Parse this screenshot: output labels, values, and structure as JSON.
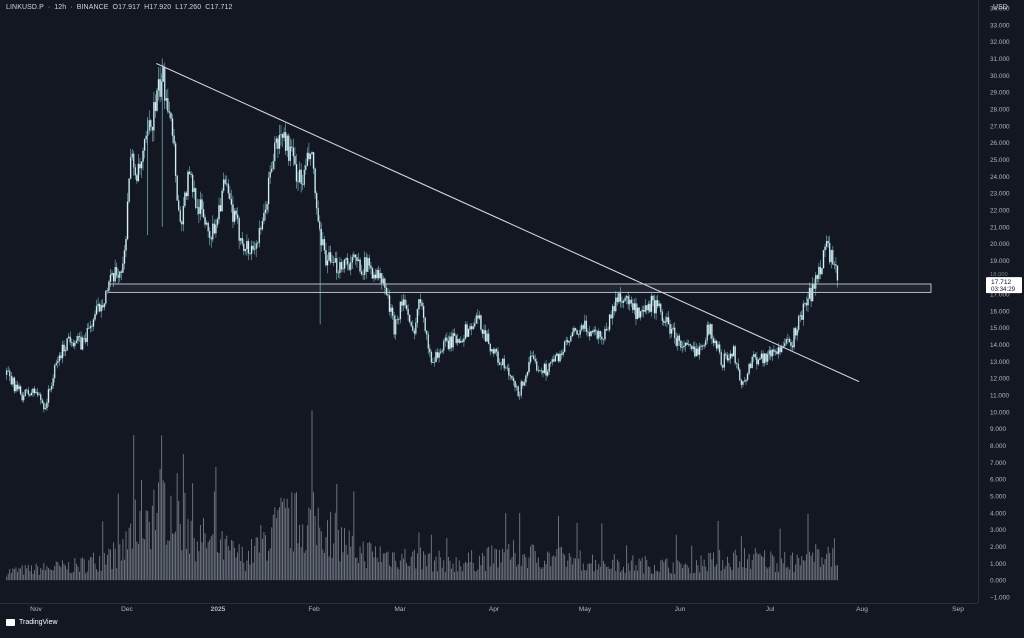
{
  "header": {
    "symbol": "LINKUSD.P",
    "interval": "12h",
    "exchange": "BINANCE",
    "open": "O17.917",
    "high": "H17.920",
    "low": "L17.260",
    "close": "C17.712"
  },
  "currency": "USD",
  "price_tag": {
    "value": "17.712",
    "countdown": "03:34:29",
    "value_under": "18.000"
  },
  "brand": "TradingView",
  "colors": {
    "background": "#131722",
    "candle": "#e6f2f4",
    "candle_edge": "#7fb7c3",
    "volume": "#7e8691",
    "trendline": "#d1d4dc",
    "zone": "#c8ccd6",
    "axis_text": "#b2b5be"
  },
  "chart_data": {
    "type": "candlestick",
    "price_axis": {
      "min": -1,
      "max": 34,
      "ticks": [
        "34.000",
        "33.000",
        "32.000",
        "31.000",
        "30.000",
        "29.000",
        "28.000",
        "27.000",
        "26.000",
        "25.000",
        "24.000",
        "23.000",
        "22.000",
        "21.000",
        "20.000",
        "19.000",
        "18.000",
        "17.000",
        "16.000",
        "15.000",
        "14.000",
        "13.000",
        "12.000",
        "11.000",
        "10.000",
        "9.000",
        "8.000",
        "7.000",
        "6.000",
        "5.000",
        "4.000",
        "3.000",
        "2.000",
        "1.000",
        "0.000",
        "−1.000"
      ]
    },
    "time_axis": {
      "labels": [
        "Nov",
        "Dec",
        "2025",
        "Feb",
        "Mar",
        "Apr",
        "May",
        "Jun",
        "Jul",
        "Aug",
        "Sep"
      ],
      "bold": [
        "2025"
      ],
      "last_bar_label": "Jul 24"
    },
    "price_path": [
      {
        "t": "Oct 22",
        "p": 12.2
      },
      {
        "t": "Oct 27",
        "p": 11.0
      },
      {
        "t": "Nov 1",
        "p": 11.2
      },
      {
        "t": "Nov 4",
        "p": 10.3
      },
      {
        "t": "Nov 8",
        "p": 13.0
      },
      {
        "t": "Nov 12",
        "p": 14.5
      },
      {
        "t": "Nov 16",
        "p": 14.0
      },
      {
        "t": "Nov 20",
        "p": 15.5
      },
      {
        "t": "Nov 25",
        "p": 17.5
      },
      {
        "t": "Nov 30",
        "p": 18.8
      },
      {
        "t": "Dec 2",
        "p": 25.0
      },
      {
        "t": "Dec 5",
        "p": 24.0
      },
      {
        "t": "Dec 9",
        "p": 27.0
      },
      {
        "t": "Dec 13",
        "p": 29.8
      },
      {
        "t": "Dec 16",
        "p": 28.0
      },
      {
        "t": "Dec 19",
        "p": 21.0
      },
      {
        "t": "Dec 22",
        "p": 24.0
      },
      {
        "t": "Dec 26",
        "p": 22.0
      },
      {
        "t": "Dec 30",
        "p": 20.5
      },
      {
        "t": "Jan 3",
        "p": 23.5
      },
      {
        "t": "Jan 7",
        "p": 21.0
      },
      {
        "t": "Jan 11",
        "p": 19.5
      },
      {
        "t": "Jan 15",
        "p": 20.5
      },
      {
        "t": "Jan 19",
        "p": 25.5
      },
      {
        "t": "Jan 22",
        "p": 26.5
      },
      {
        "t": "Jan 25",
        "p": 25.0
      },
      {
        "t": "Jan 28",
        "p": 23.5
      },
      {
        "t": "Jan 31",
        "p": 25.5
      },
      {
        "t": "Feb 3",
        "p": 20.0
      },
      {
        "t": "Feb 7",
        "p": 18.5
      },
      {
        "t": "Feb 11",
        "p": 19.0
      },
      {
        "t": "Feb 16",
        "p": 18.8
      },
      {
        "t": "Feb 20",
        "p": 18.5
      },
      {
        "t": "Feb 24",
        "p": 17.5
      },
      {
        "t": "Feb 27",
        "p": 15.0
      },
      {
        "t": "Mar 2",
        "p": 16.8
      },
      {
        "t": "Mar 5",
        "p": 14.5
      },
      {
        "t": "Mar 8",
        "p": 17.0
      },
      {
        "t": "Mar 11",
        "p": 13.0
      },
      {
        "t": "Mar 16",
        "p": 14.0
      },
      {
        "t": "Mar 21",
        "p": 14.5
      },
      {
        "t": "Mar 27",
        "p": 15.5
      },
      {
        "t": "Apr 1",
        "p": 13.5
      },
      {
        "t": "Apr 5",
        "p": 12.5
      },
      {
        "t": "Apr 9",
        "p": 11.0
      },
      {
        "t": "Apr 13",
        "p": 13.0
      },
      {
        "t": "Apr 18",
        "p": 12.5
      },
      {
        "t": "Apr 23",
        "p": 13.5
      },
      {
        "t": "Apr 27",
        "p": 14.5
      },
      {
        "t": "May 1",
        "p": 15.0
      },
      {
        "t": "May 7",
        "p": 14.5
      },
      {
        "t": "May 12",
        "p": 17.0
      },
      {
        "t": "May 15",
        "p": 16.5
      },
      {
        "t": "May 19",
        "p": 15.5
      },
      {
        "t": "May 23",
        "p": 16.5
      },
      {
        "t": "May 27",
        "p": 15.5
      },
      {
        "t": "Jun 1",
        "p": 14.0
      },
      {
        "t": "Jun 6",
        "p": 13.5
      },
      {
        "t": "Jun 11",
        "p": 15.0
      },
      {
        "t": "Jun 15",
        "p": 13.0
      },
      {
        "t": "Jun 19",
        "p": 13.5
      },
      {
        "t": "Jun 22",
        "p": 11.5
      },
      {
        "t": "Jun 25",
        "p": 13.2
      },
      {
        "t": "Jun 30",
        "p": 13.3
      },
      {
        "t": "Jul 4",
        "p": 13.8
      },
      {
        "t": "Jul 8",
        "p": 14.0
      },
      {
        "t": "Jul 12",
        "p": 16.0
      },
      {
        "t": "Jul 16",
        "p": 17.5
      },
      {
        "t": "Jul 20",
        "p": 20.0
      },
      {
        "t": "Jul 24",
        "p": 17.7
      }
    ],
    "volume_profile": [
      {
        "t": "Oct 22",
        "v": 0.6
      },
      {
        "t": "Nov 15",
        "v": 1.0
      },
      {
        "t": "Nov 30",
        "v": 2.0
      },
      {
        "t": "Dec 5",
        "v": 4.5
      },
      {
        "t": "Dec 15",
        "v": 5.5
      },
      {
        "t": "Dec 25",
        "v": 3.0
      },
      {
        "t": "Jan 10",
        "v": 1.5
      },
      {
        "t": "Jan 22",
        "v": 4.0
      },
      {
        "t": "Feb 3",
        "v": 4.0
      },
      {
        "t": "Feb 15",
        "v": 2.0
      },
      {
        "t": "Mar 5",
        "v": 1.5
      },
      {
        "t": "Mar 20",
        "v": 1.2
      },
      {
        "t": "Apr 8",
        "v": 1.8
      },
      {
        "t": "May 10",
        "v": 1.2
      },
      {
        "t": "Jun 1",
        "v": 1.0
      },
      {
        "t": "Jun 22",
        "v": 1.6
      },
      {
        "t": "Jul 10",
        "v": 1.2
      },
      {
        "t": "Jul 24",
        "v": 2.2
      }
    ],
    "trendline": [
      {
        "t": "Dec 11",
        "p": 30.7
      },
      {
        "t": "Jul 31",
        "p": 11.8
      }
    ],
    "horizontal_zone": {
      "low": 17.1,
      "high": 17.6
    }
  }
}
